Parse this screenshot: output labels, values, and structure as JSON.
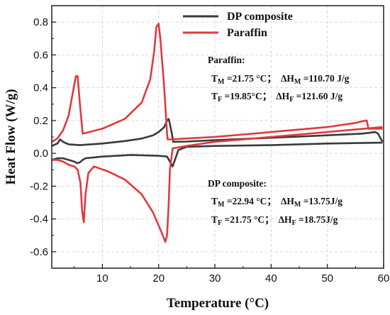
{
  "chart_data": {
    "type": "line",
    "xlabel": "Temperature (°C)",
    "ylabel": "Heat Flow (W/g)",
    "xlim": [
      1,
      60
    ],
    "ylim": [
      -0.7,
      0.9
    ],
    "xticks": [
      10,
      20,
      30,
      40,
      50,
      60
    ],
    "xtick_labels": [
      "10",
      "20",
      "30",
      "40",
      "50",
      "60"
    ],
    "yticks": [
      -0.6,
      -0.4,
      -0.2,
      0.0,
      0.2,
      0.4,
      0.6,
      0.8
    ],
    "ytick_labels": [
      "-0.6",
      "-0.4",
      "-0.2",
      "0.0",
      "0.2",
      "0.4",
      "0.6",
      "0.8"
    ],
    "grid": true,
    "legend_position": "top-right",
    "series": [
      {
        "name": "DP composite",
        "color": "#3a3a3a",
        "segments": [
          {
            "x": [
              1.0,
              2.0,
              2.5,
              3.0,
              4.0,
              6.0,
              10,
              14,
              17,
              19,
              20,
              21,
              21.5,
              21.8,
              22.3,
              22.6,
              25,
              30,
              40,
              50,
              56,
              57.5,
              58.5,
              59,
              59.8
            ],
            "y": [
              0.045,
              0.06,
              0.085,
              0.07,
              0.055,
              0.05,
              0.06,
              0.075,
              0.09,
              0.11,
              0.13,
              0.16,
              0.2,
              0.21,
              0.13,
              0.07,
              0.072,
              0.08,
              0.095,
              0.11,
              0.12,
              0.125,
              0.13,
              0.12,
              0.07
            ]
          },
          {
            "x": [
              59.8,
              50,
              40,
              30,
              25,
              23.5,
              23.0,
              22.5,
              22.0,
              21.5,
              20,
              15,
              10,
              7,
              6.5,
              6.0,
              5.5,
              5.0,
              4,
              3,
              2,
              1.0
            ],
            "y": [
              0.065,
              0.06,
              0.05,
              0.045,
              0.04,
              0.02,
              -0.03,
              -0.08,
              -0.05,
              -0.02,
              -0.015,
              -0.01,
              -0.02,
              -0.03,
              -0.04,
              -0.055,
              -0.06,
              -0.05,
              -0.04,
              -0.03,
              -0.03,
              -0.04
            ]
          }
        ]
      },
      {
        "name": "Paraffin",
        "color": "#e0393e",
        "segments": [
          {
            "x": [
              1.0,
              2.0,
              3.0,
              4.0,
              4.8,
              5.3,
              5.6,
              6.0,
              6.5,
              10,
              14,
              17,
              18.5,
              19.2,
              19.6,
              20.0,
              20.3,
              21.0,
              21.5,
              21.6,
              22,
              30,
              40,
              50,
              55,
              56.8,
              57.0,
              57.3,
              59.8
            ],
            "y": [
              0.07,
              0.09,
              0.14,
              0.23,
              0.38,
              0.47,
              0.47,
              0.3,
              0.12,
              0.15,
              0.21,
              0.31,
              0.45,
              0.62,
              0.77,
              0.79,
              0.7,
              0.4,
              0.12,
              0.085,
              0.085,
              0.1,
              0.13,
              0.16,
              0.185,
              0.2,
              0.2,
              0.15,
              0.15
            ]
          },
          {
            "x": [
              59.8,
              50,
              40,
              30,
              25,
              22.5,
              22.0,
              21.8,
              21.5,
              21.2,
              20.5,
              19,
              17,
              14,
              11,
              8.5,
              7.5,
              7.0,
              6.7,
              6.4,
              6.1,
              5.6,
              5.0,
              4.0,
              3.0,
              2.0,
              1.0
            ],
            "y": [
              0.16,
              0.13,
              0.1,
              0.07,
              0.045,
              0.03,
              -0.1,
              -0.3,
              -0.5,
              -0.54,
              -0.48,
              -0.36,
              -0.25,
              -0.16,
              -0.11,
              -0.08,
              -0.12,
              -0.25,
              -0.42,
              -0.35,
              -0.18,
              -0.1,
              -0.08,
              -0.07,
              -0.05,
              -0.04,
              -0.04
            ]
          }
        ]
      }
    ],
    "annotations": [
      {
        "heading": "Paraffin:",
        "line1": {
          "tm": "T",
          "tm_sub": "M",
          "tm_val": " =21.75 °C；",
          "dh": "ΔH",
          "dh_sub": "M",
          "dh_val": " =110.70  J/g"
        },
        "line2": {
          "tm": "T",
          "tm_sub": "F",
          "tm_val": " =19.85°C；",
          "dh": "ΔH",
          "dh_sub": "F",
          "dh_val": " =121.60 J/g"
        }
      },
      {
        "heading": "DP composite:",
        "line1": {
          "tm": "T",
          "tm_sub": "M",
          "tm_val": " =22.94 °C；",
          "dh": "ΔH",
          "dh_sub": "M",
          "dh_val": " =13.75J/g"
        },
        "line2": {
          "tm": "T",
          "tm_sub": "F",
          "tm_val": " =21.75 °C；",
          "dh": "ΔH",
          "dh_sub": "F",
          "dh_val": " =18.75J/g"
        }
      }
    ]
  }
}
